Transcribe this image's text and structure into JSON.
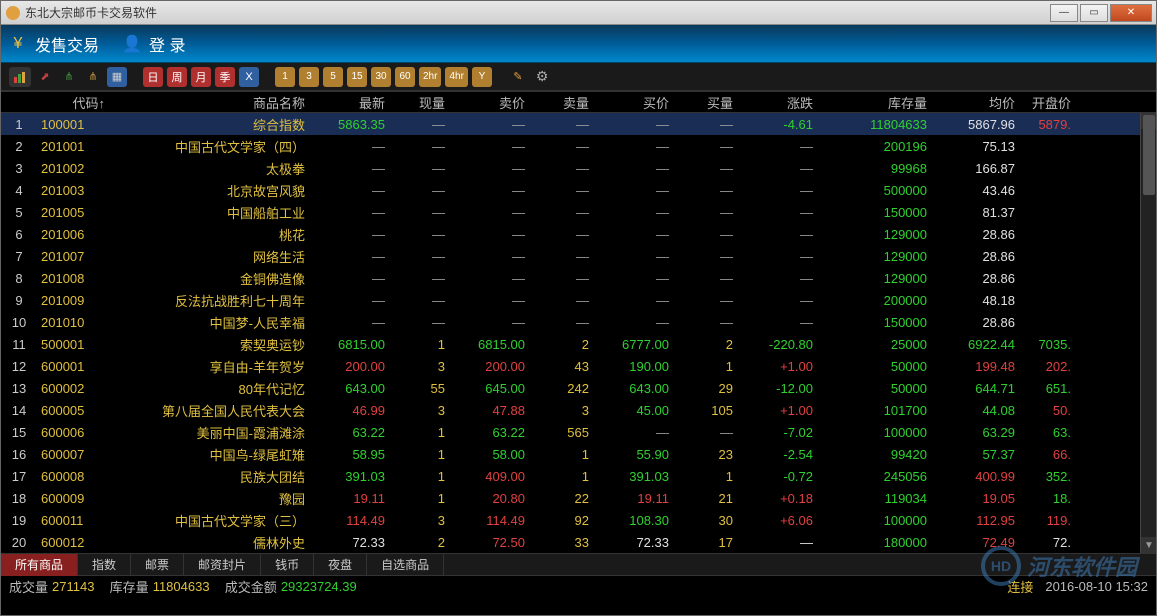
{
  "window": {
    "title": "东北大宗邮币卡交易软件"
  },
  "menu": {
    "trade": "发售交易",
    "login": "登  录"
  },
  "toolbar": {
    "periods": [
      "日",
      "周",
      "月",
      "季",
      "X"
    ],
    "intervals": [
      "1",
      "3",
      "5",
      "15",
      "30",
      "60",
      "2hr",
      "4hr",
      "Y"
    ]
  },
  "columns": {
    "code": "代码↑",
    "name": "商品名称",
    "latest": "最新",
    "vol": "现量",
    "sell": "卖价",
    "sellv": "卖量",
    "buy": "买价",
    "buyv": "买量",
    "chg": "涨跌",
    "stock": "库存量",
    "avg": "均价",
    "open": "开盘价"
  },
  "rows": [
    {
      "idx": "1",
      "code": "100001",
      "name": "综合指数",
      "latest": "5863.35",
      "vol": "—",
      "sell": "—",
      "sellv": "—",
      "buy": "—",
      "buyv": "—",
      "chg": "-4.61",
      "stock": "11804633",
      "avg": "5867.96",
      "open": "5879.",
      "c": {
        "code": "yellow",
        "name": "yellow",
        "latest": "green",
        "chg": "green",
        "stock": "green",
        "avg": "white",
        "open": "red"
      },
      "sel": true
    },
    {
      "idx": "2",
      "code": "201001",
      "name": "中国古代文学家（四）",
      "latest": "—",
      "vol": "—",
      "sell": "—",
      "sellv": "—",
      "buy": "—",
      "buyv": "—",
      "chg": "—",
      "stock": "200196",
      "avg": "75.13",
      "open": "",
      "c": {
        "code": "yellow",
        "name": "yellow",
        "stock": "green",
        "avg": "white"
      }
    },
    {
      "idx": "3",
      "code": "201002",
      "name": "太极拳",
      "latest": "—",
      "vol": "—",
      "sell": "—",
      "sellv": "—",
      "buy": "—",
      "buyv": "—",
      "chg": "—",
      "stock": "99968",
      "avg": "166.87",
      "open": "",
      "c": {
        "code": "yellow",
        "name": "yellow",
        "stock": "green",
        "avg": "white"
      }
    },
    {
      "idx": "4",
      "code": "201003",
      "name": "北京故宫风貌",
      "latest": "—",
      "vol": "—",
      "sell": "—",
      "sellv": "—",
      "buy": "—",
      "buyv": "—",
      "chg": "—",
      "stock": "500000",
      "avg": "43.46",
      "open": "",
      "c": {
        "code": "yellow",
        "name": "yellow",
        "stock": "green",
        "avg": "white"
      }
    },
    {
      "idx": "5",
      "code": "201005",
      "name": "中国船舶工业",
      "latest": "—",
      "vol": "—",
      "sell": "—",
      "sellv": "—",
      "buy": "—",
      "buyv": "—",
      "chg": "—",
      "stock": "150000",
      "avg": "81.37",
      "open": "",
      "c": {
        "code": "yellow",
        "name": "yellow",
        "stock": "green",
        "avg": "white"
      }
    },
    {
      "idx": "6",
      "code": "201006",
      "name": "桃花",
      "latest": "—",
      "vol": "—",
      "sell": "—",
      "sellv": "—",
      "buy": "—",
      "buyv": "—",
      "chg": "—",
      "stock": "129000",
      "avg": "28.86",
      "open": "",
      "c": {
        "code": "yellow",
        "name": "yellow",
        "stock": "green",
        "avg": "white"
      }
    },
    {
      "idx": "7",
      "code": "201007",
      "name": "网络生活",
      "latest": "—",
      "vol": "—",
      "sell": "—",
      "sellv": "—",
      "buy": "—",
      "buyv": "—",
      "chg": "—",
      "stock": "129000",
      "avg": "28.86",
      "open": "",
      "c": {
        "code": "yellow",
        "name": "yellow",
        "stock": "green",
        "avg": "white"
      }
    },
    {
      "idx": "8",
      "code": "201008",
      "name": "金铜佛造像",
      "latest": "—",
      "vol": "—",
      "sell": "—",
      "sellv": "—",
      "buy": "—",
      "buyv": "—",
      "chg": "—",
      "stock": "129000",
      "avg": "28.86",
      "open": "",
      "c": {
        "code": "yellow",
        "name": "yellow",
        "stock": "green",
        "avg": "white"
      }
    },
    {
      "idx": "9",
      "code": "201009",
      "name": "反法抗战胜利七十周年",
      "latest": "—",
      "vol": "—",
      "sell": "—",
      "sellv": "—",
      "buy": "—",
      "buyv": "—",
      "chg": "—",
      "stock": "200000",
      "avg": "48.18",
      "open": "",
      "c": {
        "code": "yellow",
        "name": "yellow",
        "stock": "green",
        "avg": "white"
      }
    },
    {
      "idx": "10",
      "code": "201010",
      "name": "中国梦-人民幸福",
      "latest": "—",
      "vol": "—",
      "sell": "—",
      "sellv": "—",
      "buy": "—",
      "buyv": "—",
      "chg": "—",
      "stock": "150000",
      "avg": "28.86",
      "open": "",
      "c": {
        "code": "yellow",
        "name": "yellow",
        "stock": "green",
        "avg": "white"
      }
    },
    {
      "idx": "11",
      "code": "500001",
      "name": "索契奥运钞",
      "latest": "6815.00",
      "vol": "1",
      "sell": "6815.00",
      "sellv": "2",
      "buy": "6777.00",
      "buyv": "2",
      "chg": "-220.80",
      "stock": "25000",
      "avg": "6922.44",
      "open": "7035.",
      "c": {
        "code": "yellow",
        "name": "yellow",
        "latest": "green",
        "vol": "yellow",
        "sell": "green",
        "sellv": "yellow",
        "buy": "green",
        "buyv": "yellow",
        "chg": "green",
        "stock": "green",
        "avg": "green",
        "open": "green"
      }
    },
    {
      "idx": "12",
      "code": "600001",
      "name": "享自由-羊年贺岁",
      "latest": "200.00",
      "vol": "3",
      "sell": "200.00",
      "sellv": "43",
      "buy": "190.00",
      "buyv": "1",
      "chg": "+1.00",
      "stock": "50000",
      "avg": "199.48",
      "open": "202.",
      "c": {
        "code": "yellow",
        "name": "yellow",
        "latest": "red",
        "vol": "yellow",
        "sell": "red",
        "sellv": "yellow",
        "buy": "green",
        "buyv": "yellow",
        "chg": "red",
        "stock": "green",
        "avg": "red",
        "open": "red"
      }
    },
    {
      "idx": "13",
      "code": "600002",
      "name": "80年代记忆",
      "latest": "643.00",
      "vol": "55",
      "sell": "645.00",
      "sellv": "242",
      "buy": "643.00",
      "buyv": "29",
      "chg": "-12.00",
      "stock": "50000",
      "avg": "644.71",
      "open": "651.",
      "c": {
        "code": "yellow",
        "name": "yellow",
        "latest": "green",
        "vol": "yellow",
        "sell": "green",
        "sellv": "yellow",
        "buy": "green",
        "buyv": "yellow",
        "chg": "green",
        "stock": "green",
        "avg": "green",
        "open": "green"
      }
    },
    {
      "idx": "14",
      "code": "600005",
      "name": "第八届全国人民代表大会",
      "latest": "46.99",
      "vol": "3",
      "sell": "47.88",
      "sellv": "3",
      "buy": "45.00",
      "buyv": "105",
      "chg": "+1.00",
      "stock": "101700",
      "avg": "44.08",
      "open": "50.",
      "c": {
        "code": "yellow",
        "name": "yellow",
        "latest": "red",
        "vol": "yellow",
        "sell": "red",
        "sellv": "yellow",
        "buy": "green",
        "buyv": "yellow",
        "chg": "red",
        "stock": "green",
        "avg": "green",
        "open": "red"
      }
    },
    {
      "idx": "15",
      "code": "600006",
      "name": "美丽中国-霞浦滩涂",
      "latest": "63.22",
      "vol": "1",
      "sell": "63.22",
      "sellv": "565",
      "buy": "—",
      "buyv": "—",
      "chg": "-7.02",
      "stock": "100000",
      "avg": "63.29",
      "open": "63.",
      "c": {
        "code": "yellow",
        "name": "yellow",
        "latest": "green",
        "vol": "yellow",
        "sell": "green",
        "sellv": "yellow",
        "chg": "green",
        "stock": "green",
        "avg": "green",
        "open": "green"
      }
    },
    {
      "idx": "16",
      "code": "600007",
      "name": "中国鸟-绿尾虹雉",
      "latest": "58.95",
      "vol": "1",
      "sell": "58.00",
      "sellv": "1",
      "buy": "55.90",
      "buyv": "23",
      "chg": "-2.54",
      "stock": "99420",
      "avg": "57.37",
      "open": "66.",
      "c": {
        "code": "yellow",
        "name": "yellow",
        "latest": "green",
        "vol": "yellow",
        "sell": "green",
        "sellv": "yellow",
        "buy": "green",
        "buyv": "yellow",
        "chg": "green",
        "stock": "green",
        "avg": "green",
        "open": "red"
      }
    },
    {
      "idx": "17",
      "code": "600008",
      "name": "民族大团结",
      "latest": "391.03",
      "vol": "1",
      "sell": "409.00",
      "sellv": "1",
      "buy": "391.03",
      "buyv": "1",
      "chg": "-0.72",
      "stock": "245056",
      "avg": "400.99",
      "open": "352.",
      "c": {
        "code": "yellow",
        "name": "yellow",
        "latest": "green",
        "vol": "yellow",
        "sell": "red",
        "sellv": "yellow",
        "buy": "green",
        "buyv": "yellow",
        "chg": "green",
        "stock": "green",
        "avg": "red",
        "open": "green"
      }
    },
    {
      "idx": "18",
      "code": "600009",
      "name": "豫园",
      "latest": "19.11",
      "vol": "1",
      "sell": "20.80",
      "sellv": "22",
      "buy": "19.11",
      "buyv": "21",
      "chg": "+0.18",
      "stock": "119034",
      "avg": "19.05",
      "open": "18.",
      "c": {
        "code": "yellow",
        "name": "yellow",
        "latest": "red",
        "vol": "yellow",
        "sell": "red",
        "sellv": "yellow",
        "buy": "red",
        "buyv": "yellow",
        "chg": "red",
        "stock": "green",
        "avg": "red",
        "open": "green"
      }
    },
    {
      "idx": "19",
      "code": "600011",
      "name": "中国古代文学家（三）",
      "latest": "114.49",
      "vol": "3",
      "sell": "114.49",
      "sellv": "92",
      "buy": "108.30",
      "buyv": "30",
      "chg": "+6.06",
      "stock": "100000",
      "avg": "112.95",
      "open": "119.",
      "c": {
        "code": "yellow",
        "name": "yellow",
        "latest": "red",
        "vol": "yellow",
        "sell": "red",
        "sellv": "yellow",
        "buy": "green",
        "buyv": "yellow",
        "chg": "red",
        "stock": "green",
        "avg": "red",
        "open": "red"
      }
    },
    {
      "idx": "20",
      "code": "600012",
      "name": "儒林外史",
      "latest": "72.33",
      "vol": "2",
      "sell": "72.50",
      "sellv": "33",
      "buy": "72.33",
      "buyv": "17",
      "chg": "—",
      "stock": "180000",
      "avg": "72.49",
      "open": "72.",
      "c": {
        "code": "yellow",
        "name": "yellow",
        "latest": "white",
        "vol": "yellow",
        "sell": "red",
        "sellv": "yellow",
        "buy": "white",
        "buyv": "yellow",
        "chg": "white",
        "stock": "green",
        "avg": "red",
        "open": "white"
      }
    }
  ],
  "tabs": [
    "所有商品",
    "指数",
    "邮票",
    "邮资封片",
    "钱币",
    "夜盘",
    "自选商品"
  ],
  "active_tab": 0,
  "status": {
    "vol_label": "成交量",
    "vol": "271143",
    "stock_label": "库存量",
    "stock": "11804633",
    "amt_label": "成交金额",
    "amt": "29323724.39",
    "conn": "连接",
    "datetime": "2016-08-10 15:32"
  },
  "watermark": "河东软件园"
}
